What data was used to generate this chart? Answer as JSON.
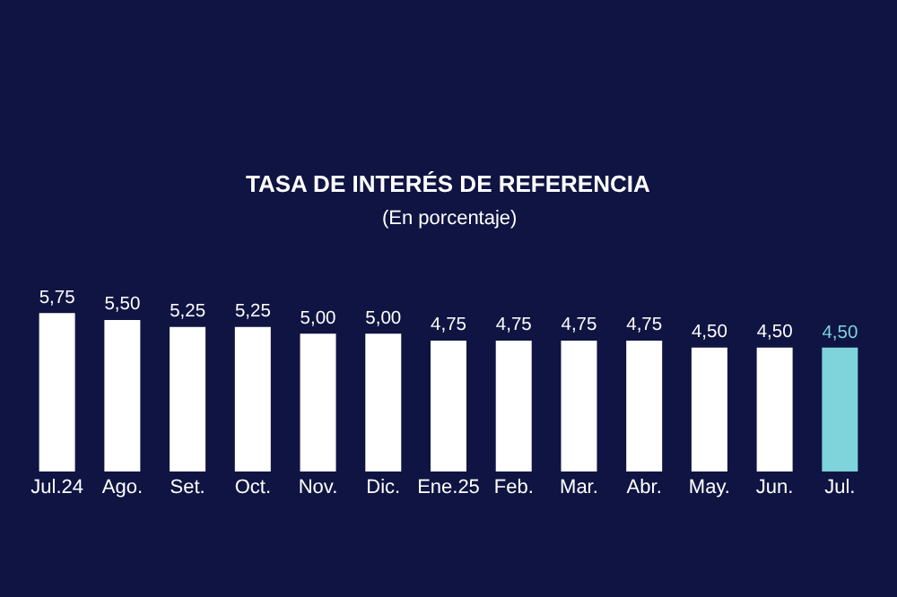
{
  "chart_data": {
    "type": "bar",
    "title": "TASA DE INTERÉS DE REFERENCIA",
    "subtitle": "(En porcentaje)",
    "categories": [
      "Jul.24",
      "Ago.",
      "Set.",
      "Oct.",
      "Nov.",
      "Dic.",
      "Ene.25",
      "Feb.",
      "Mar.",
      "Abr.",
      "May.",
      "Jun.",
      "Jul."
    ],
    "values": [
      5.75,
      5.5,
      5.25,
      5.25,
      5.0,
      5.0,
      4.75,
      4.75,
      4.75,
      4.75,
      4.5,
      4.5,
      4.5
    ],
    "value_labels": [
      "5,75",
      "5,50",
      "5,25",
      "5,25",
      "5,00",
      "5,00",
      "4,75",
      "4,75",
      "4,75",
      "4,75",
      "4,50",
      "4,50",
      "4,50"
    ],
    "colors": [
      "#ffffff",
      "#ffffff",
      "#ffffff",
      "#ffffff",
      "#ffffff",
      "#ffffff",
      "#ffffff",
      "#ffffff",
      "#ffffff",
      "#ffffff",
      "#ffffff",
      "#ffffff",
      "#7fd3da"
    ],
    "grid": false,
    "legend": false
  }
}
